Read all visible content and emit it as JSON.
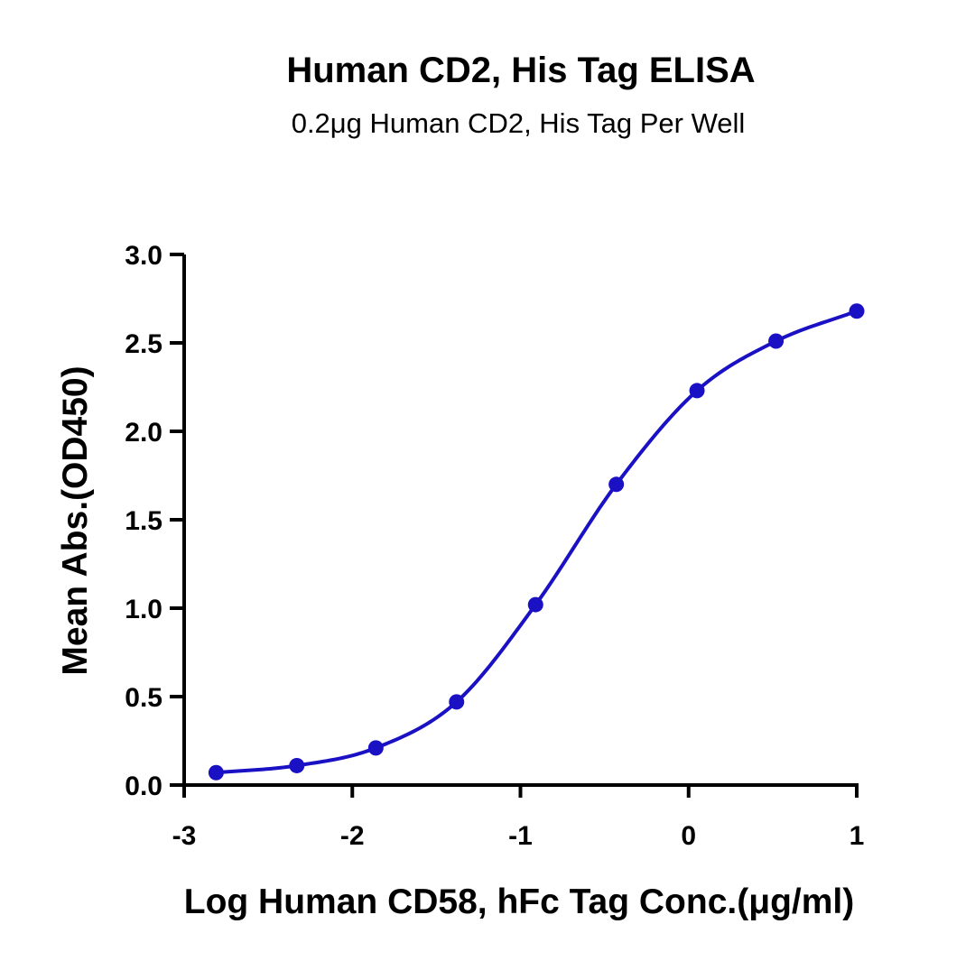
{
  "colors": {
    "series": "#1a10c4",
    "axis": "#000000",
    "background": "#ffffff"
  },
  "chart_data": {
    "type": "scatter",
    "title": "Human CD2, His Tag ELISA",
    "subtitle": "0.2μg Human CD2, His Tag Per Well",
    "xlabel": "Log Human CD58, hFc Tag Conc.(μg/ml)",
    "ylabel": "Mean Abs.(OD450)",
    "xlim": [
      -3,
      1
    ],
    "ylim": [
      0,
      3
    ],
    "xticks": [
      -3,
      -2,
      -1,
      0,
      1
    ],
    "xtick_labels": [
      "-3",
      "-2",
      "-1",
      "0",
      "1"
    ],
    "yticks": [
      0,
      0.5,
      1,
      1.5,
      2,
      2.5,
      3
    ],
    "ytick_labels": [
      "0.0",
      "0.5",
      "1.0",
      "1.5",
      "2.0",
      "2.5",
      "3.0"
    ],
    "grid": false,
    "legend": "none",
    "fit": "4PL sigmoidal curve",
    "series": [
      {
        "x": [
          -2.81,
          -2.33,
          -1.86,
          -1.38,
          -0.91,
          -0.43,
          0.05,
          0.52,
          1.0
        ],
        "y": [
          0.07,
          0.11,
          0.21,
          0.47,
          1.02,
          1.7,
          2.23,
          2.51,
          2.68
        ]
      }
    ]
  }
}
